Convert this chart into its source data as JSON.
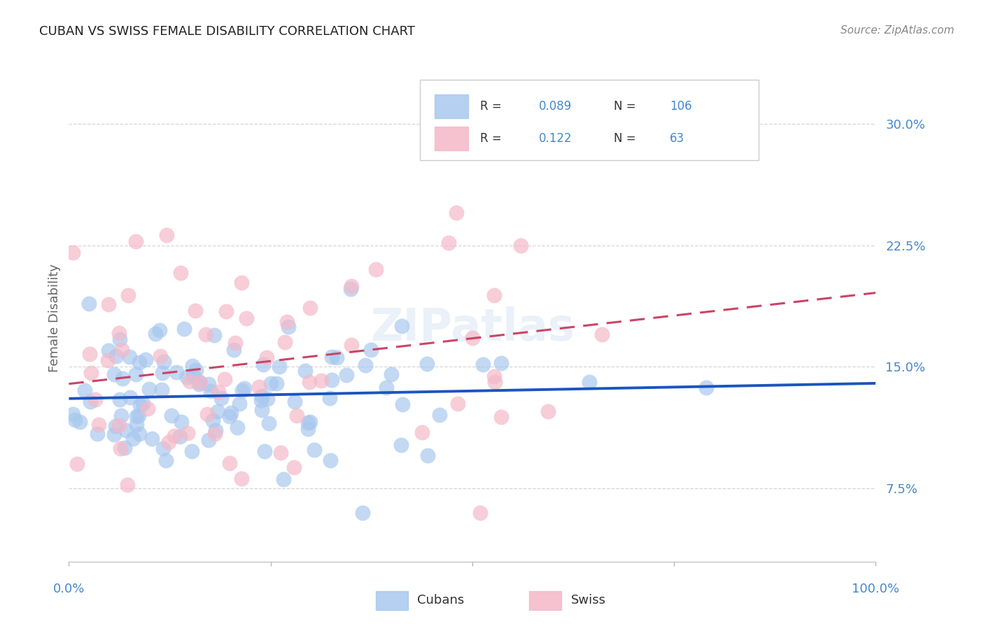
{
  "title": "CUBAN VS SWISS FEMALE DISABILITY CORRELATION CHART",
  "source": "Source: ZipAtlas.com",
  "ylabel": "Female Disability",
  "ytick_vals": [
    0.075,
    0.15,
    0.225,
    0.3
  ],
  "ytick_labels": [
    "7.5%",
    "15.0%",
    "22.5%",
    "30.0%"
  ],
  "xlim": [
    0.0,
    1.0
  ],
  "ylim": [
    0.03,
    0.33
  ],
  "legend_blue_r": "0.089",
  "legend_blue_n": "106",
  "legend_pink_r": "0.122",
  "legend_pink_n": "63",
  "legend_label_blue": "Cubans",
  "legend_label_pink": "Swiss",
  "blue_fill": "#A8C8EE",
  "pink_fill": "#F5B8C8",
  "blue_line": "#1A55C0",
  "pink_line": "#CC4466",
  "bg_color": "#FFFFFF",
  "grid_color": "#CCCCCC",
  "title_color": "#222222",
  "source_color": "#888888",
  "axis_label_color": "#4488CC",
  "right_tick_color": "#4488CC"
}
